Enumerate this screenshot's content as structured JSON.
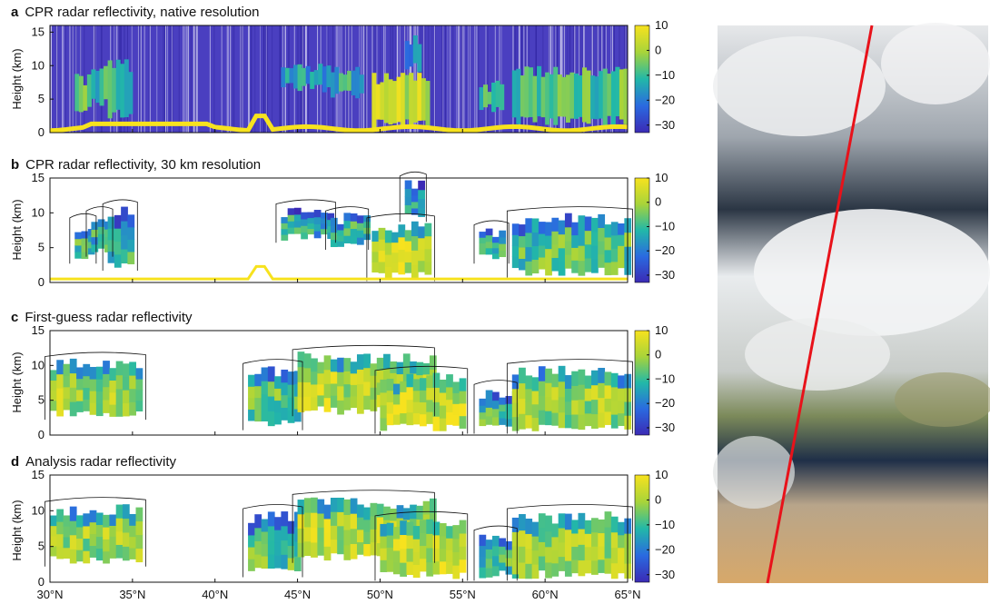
{
  "panels": [
    {
      "letter": "a",
      "title": "CPR radar reflectivity, native resolution",
      "ylabel": "Height (km)",
      "yticks": [
        "0",
        "5",
        "10",
        "15"
      ],
      "ylim": [
        0,
        16
      ]
    },
    {
      "letter": "b",
      "title": "CPR radar reflectivity, 30 km resolution",
      "ylabel": "Height (km)",
      "yticks": [
        "0",
        "5",
        "10",
        "15"
      ],
      "ylim": [
        0,
        15
      ]
    },
    {
      "letter": "c",
      "title": "First-guess radar reflectivity",
      "ylabel": "Height (km)",
      "yticks": [
        "0",
        "5",
        "10",
        "15"
      ],
      "ylim": [
        0,
        15
      ]
    },
    {
      "letter": "d",
      "title": "Analysis radar reflectivity",
      "ylabel": "Height (km)",
      "yticks": [
        "0",
        "5",
        "10",
        "15"
      ],
      "ylim": [
        0,
        15
      ]
    }
  ],
  "colorbar": {
    "ticks": [
      "10",
      "0",
      "−10",
      "−20",
      "−30"
    ],
    "range": [
      -33,
      10
    ]
  },
  "xaxis": {
    "ticks": [
      "30°N",
      "35°N",
      "40°N",
      "45°N",
      "50°N",
      "55°N",
      "60°N",
      "65°N"
    ],
    "range": [
      30,
      65
    ]
  },
  "colors": {
    "low": "#3b2ab5",
    "mid": "#22b8a8",
    "high": "#f7e21e",
    "track": "#e8121a"
  },
  "chart_data": [
    {
      "type": "heatmap",
      "title": "CPR radar reflectivity, native resolution",
      "ylabel": "Height (km)",
      "x_range_degN": [
        30,
        65
      ],
      "ylim": [
        0,
        16
      ],
      "colorbar_range_dBZ": [
        -33,
        10
      ]
    },
    {
      "type": "heatmap",
      "title": "CPR radar reflectivity, 30 km resolution",
      "ylabel": "Height (km)",
      "x_range_degN": [
        30,
        65
      ],
      "ylim": [
        0,
        15
      ],
      "colorbar_range_dBZ": [
        -33,
        10
      ]
    },
    {
      "type": "heatmap",
      "title": "First-guess radar reflectivity",
      "ylabel": "Height (km)",
      "x_range_degN": [
        30,
        65
      ],
      "ylim": [
        0,
        15
      ],
      "colorbar_range_dBZ": [
        -33,
        10
      ]
    },
    {
      "type": "heatmap",
      "title": "Analysis radar reflectivity",
      "ylabel": "Height (km)",
      "x_range_degN": [
        30,
        65
      ],
      "ylim": [
        0,
        15
      ],
      "colorbar_range_dBZ": [
        -33,
        10
      ]
    }
  ]
}
